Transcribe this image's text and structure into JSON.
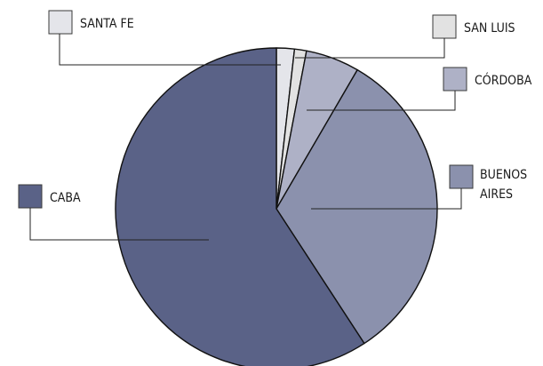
{
  "chart_data": {
    "type": "pie",
    "title": "",
    "start_angle_deg": 0,
    "direction": "clockwise",
    "slices": [
      {
        "name": "SANTA FE",
        "label_lines": [
          "SANTA FE"
        ],
        "value": 1.8,
        "color": "#e4e5ea"
      },
      {
        "name": "SAN LUIS",
        "label_lines": [
          "SAN LUIS"
        ],
        "value": 1.2,
        "color": "#e2e2e2"
      },
      {
        "name": "CÓRDOBA",
        "label_lines": [
          "CÓRDOBA"
        ],
        "value": 5.4,
        "color": "#aeb1c6"
      },
      {
        "name": "BUENOS AIRES",
        "label_lines": [
          "BUENOS",
          "AIRES"
        ],
        "value": 32.4,
        "color": "#8b91ad"
      },
      {
        "name": "CABA",
        "label_lines": [
          "CABA"
        ],
        "value": 59.2,
        "color": "#5a6287"
      }
    ],
    "legend_placement": "callouts around pie"
  }
}
